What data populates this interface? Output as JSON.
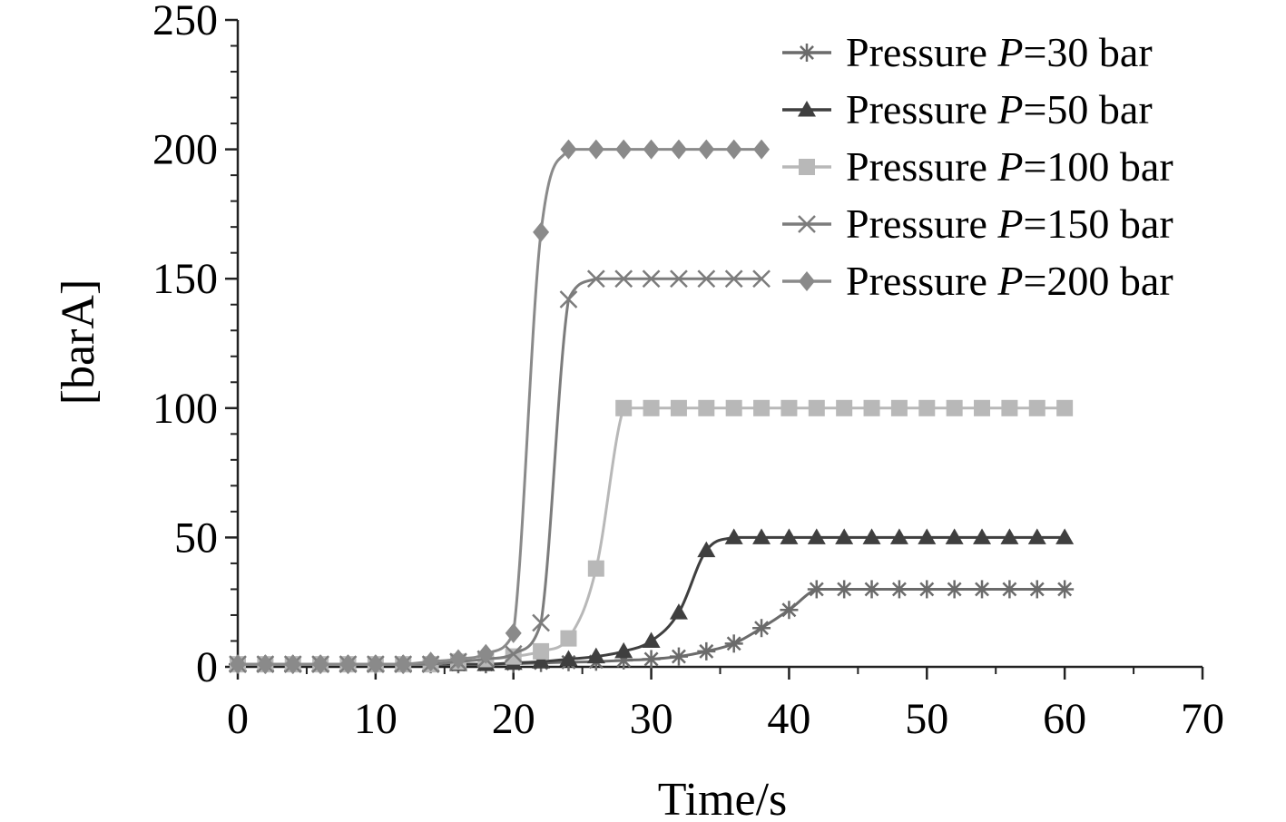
{
  "chart_data": {
    "type": "line",
    "title": "",
    "xlabel": "Time/s",
    "ylabel": "[barA]",
    "xlim": [
      0,
      70
    ],
    "ylim": [
      0,
      250
    ],
    "xticks": [
      "0",
      "10",
      "20",
      "30",
      "40",
      "50",
      "60",
      "70"
    ],
    "yticks": [
      "0",
      "50",
      "100",
      "150",
      "200",
      "250"
    ],
    "grid": false,
    "legend_position": "top-right",
    "series": [
      {
        "name_prefix": "Pressure ",
        "name_var": "P",
        "name_suffix": "=30 bar",
        "marker": "asterisk",
        "color": "#6b6b6b",
        "x": [
          0,
          2,
          4,
          6,
          8,
          10,
          12,
          14,
          16,
          18,
          20,
          22,
          24,
          26,
          28,
          30,
          32,
          34,
          36,
          38,
          40,
          42,
          44,
          46,
          48,
          50,
          52,
          54,
          56,
          58,
          60
        ],
        "y": [
          1,
          1,
          1,
          1,
          1,
          1,
          1,
          1,
          1,
          1,
          1.2,
          1.5,
          1.8,
          2,
          2.5,
          3,
          4,
          6,
          9,
          15,
          22,
          30,
          30,
          30,
          30,
          30,
          30,
          30,
          30,
          30,
          30
        ]
      },
      {
        "name_prefix": "Pressure ",
        "name_var": "P",
        "name_suffix": "=50 bar",
        "marker": "triangle",
        "color": "#3f3f3f",
        "x": [
          0,
          2,
          4,
          6,
          8,
          10,
          12,
          14,
          16,
          18,
          20,
          22,
          24,
          26,
          28,
          30,
          32,
          34,
          36,
          38,
          40,
          42,
          44,
          46,
          48,
          50,
          52,
          54,
          56,
          58,
          60
        ],
        "y": [
          1,
          1,
          1,
          1,
          1,
          1,
          1,
          1,
          1,
          1,
          1.5,
          2,
          3,
          4,
          6,
          10,
          21,
          45,
          50,
          50,
          50,
          50,
          50,
          50,
          50,
          50,
          50,
          50,
          50,
          50,
          50
        ]
      },
      {
        "name_prefix": "Pressure ",
        "name_var": "P",
        "name_suffix": "=100 bar",
        "marker": "square",
        "color": "#b8b8b8",
        "x": [
          0,
          2,
          4,
          6,
          8,
          10,
          12,
          14,
          16,
          18,
          20,
          22,
          24,
          26,
          28,
          30,
          32,
          34,
          36,
          38,
          40,
          42,
          44,
          46,
          48,
          50,
          52,
          54,
          56,
          58,
          60
        ],
        "y": [
          1,
          1,
          1,
          1,
          1,
          1,
          1,
          1,
          2,
          3,
          4,
          6,
          11,
          38,
          100,
          100,
          100,
          100,
          100,
          100,
          100,
          100,
          100,
          100,
          100,
          100,
          100,
          100,
          100,
          100,
          100
        ]
      },
      {
        "name_prefix": "Pressure ",
        "name_var": "P",
        "name_suffix": "=150 bar",
        "marker": "x",
        "color": "#7c7c7c",
        "x": [
          0,
          2,
          4,
          6,
          8,
          10,
          12,
          14,
          16,
          18,
          20,
          22,
          24,
          26,
          28,
          30,
          32,
          34,
          36,
          38
        ],
        "y": [
          1,
          1,
          1,
          1,
          1,
          1,
          1,
          1,
          2,
          3,
          5,
          17,
          142,
          150,
          150,
          150,
          150,
          150,
          150,
          150
        ]
      },
      {
        "name_prefix": "Pressure ",
        "name_var": "P",
        "name_suffix": "=200 bar",
        "marker": "diamond",
        "color": "#8a8a8a",
        "x": [
          0,
          2,
          4,
          6,
          8,
          10,
          12,
          14,
          16,
          18,
          20,
          22,
          24,
          26,
          28,
          30,
          32,
          34,
          36,
          38
        ],
        "y": [
          1,
          1,
          1,
          1,
          1,
          1,
          1,
          2,
          3,
          5,
          13,
          168,
          200,
          200,
          200,
          200,
          200,
          200,
          200,
          200
        ]
      }
    ]
  }
}
